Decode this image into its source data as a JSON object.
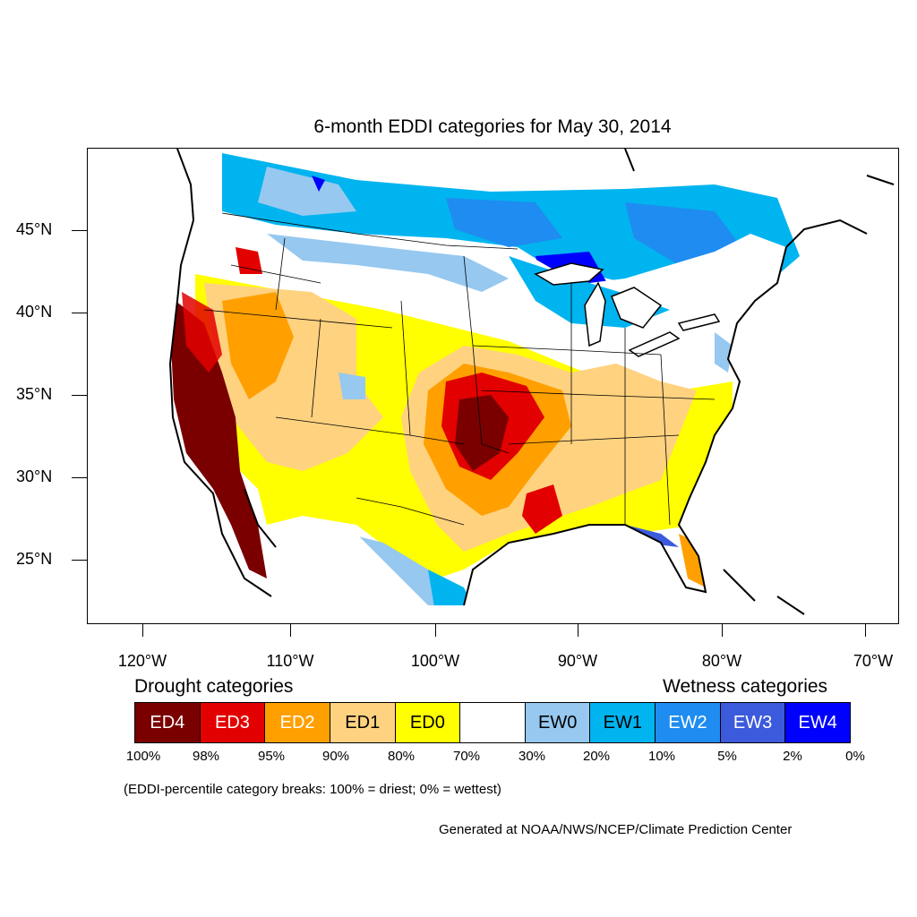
{
  "title": "6-month EDDI categories for May 30, 2014",
  "lat_labels": [
    "45°N",
    "40°N",
    "35°N",
    "30°N",
    "25°N"
  ],
  "lon_labels": [
    "120°W",
    "110°W",
    "100°W",
    "90°W",
    "80°W",
    "70°W"
  ],
  "legend": {
    "drought_heading": "Drought categories",
    "wetness_heading": "Wetness categories",
    "categories": [
      {
        "label": "ED4",
        "color": "#7a0000",
        "text_color": "#ffffff"
      },
      {
        "label": "ED3",
        "color": "#e30000",
        "text_color": "#ffffff"
      },
      {
        "label": "ED2",
        "color": "#ffa000",
        "text_color": "#ffffff"
      },
      {
        "label": "ED1",
        "color": "#ffd280",
        "text_color": "#000000"
      },
      {
        "label": "ED0",
        "color": "#ffff00",
        "text_color": "#000000"
      },
      {
        "label": "",
        "color": "#ffffff",
        "text_color": "#000000"
      },
      {
        "label": "EW0",
        "color": "#96c8f0",
        "text_color": "#000000"
      },
      {
        "label": "EW1",
        "color": "#00b4f0",
        "text_color": "#000000"
      },
      {
        "label": "EW2",
        "color": "#1e8cf0",
        "text_color": "#ffffff"
      },
      {
        "label": "EW3",
        "color": "#3c5adc",
        "text_color": "#ffffff"
      },
      {
        "label": "EW4",
        "color": "#0000ff",
        "text_color": "#ffffff"
      }
    ],
    "percent_breaks": [
      "100%",
      "98%",
      "95%",
      "90%",
      "80%",
      "70%",
      "30%",
      "20%",
      "10%",
      "5%",
      "2%",
      "0%"
    ]
  },
  "note": "(EDDI-percentile category breaks: 100% = driest; 0% = wettest)",
  "credit": "Generated at NOAA/NWS/NCEP/Climate Prediction Center"
}
